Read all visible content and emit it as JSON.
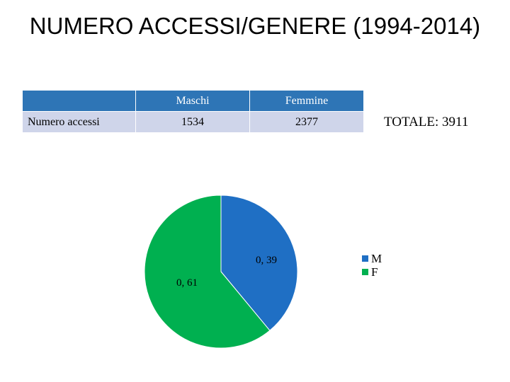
{
  "title": "NUMERO ACCESSI/GENERE (1994-2014)",
  "table": {
    "headers": [
      "",
      "Maschi",
      "Femmine"
    ],
    "rows": [
      {
        "label": "Numero accessi",
        "values": [
          "1534",
          "2377"
        ]
      }
    ]
  },
  "total": "TOTALE: 3911",
  "chart_data": {
    "type": "pie",
    "categories": [
      "M",
      "F"
    ],
    "values": [
      0.39,
      0.61
    ],
    "data_labels": [
      "0, 39",
      "0, 61"
    ],
    "colors": [
      "#1f6fc4",
      "#00b050"
    ],
    "legend_position": "right"
  }
}
